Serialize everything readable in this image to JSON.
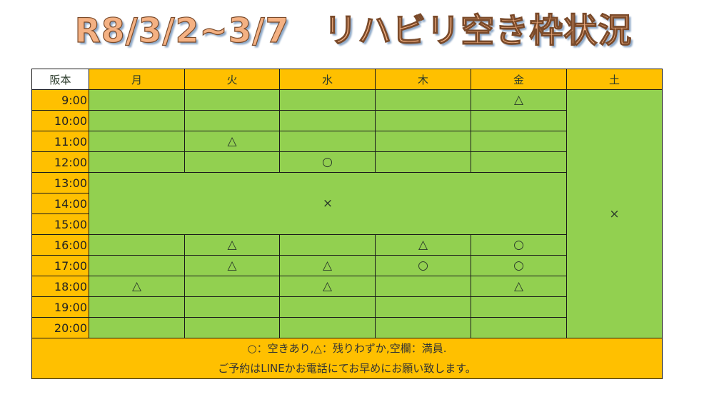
{
  "title": "R8/3/2~3/7　リハビリ空き枠状況",
  "header": {
    "location": "阪本",
    "days": [
      "月",
      "火",
      "水",
      "木",
      "金",
      "土"
    ]
  },
  "colors": {
    "header": "#ffc000",
    "cell": "#92d050",
    "title_fill": "#f4b183"
  },
  "rows": [
    {
      "time": "9:00",
      "cells": [
        "",
        "",
        "",
        "",
        "△"
      ]
    },
    {
      "time": "10:00",
      "cells": [
        "",
        "",
        "",
        "",
        ""
      ]
    },
    {
      "time": "11:00",
      "cells": [
        "",
        "△",
        "",
        "",
        ""
      ]
    },
    {
      "time": "12:00",
      "cells": [
        "",
        "",
        "○",
        "",
        ""
      ]
    },
    {
      "time": "13:00",
      "cells": null
    },
    {
      "time": "14:00",
      "cells": null
    },
    {
      "time": "15:00",
      "cells": null
    },
    {
      "time": "16:00",
      "cells": [
        "",
        "△",
        "",
        "△",
        "○"
      ]
    },
    {
      "time": "17:00",
      "cells": [
        "",
        "△",
        "△",
        "○",
        "○"
      ]
    },
    {
      "time": "18:00",
      "cells": [
        "△",
        "",
        "△",
        "",
        "△"
      ]
    },
    {
      "time": "19:00",
      "cells": [
        "",
        "",
        "",
        "",
        ""
      ]
    },
    {
      "time": "20:00",
      "cells": [
        "",
        "",
        "",
        "",
        ""
      ]
    }
  ],
  "afternoon_closed": "×",
  "saturday": "×",
  "footer": {
    "legend": "○：空きあり,△：残りわずか,空欄：満員.",
    "note": "ご予約はLINEかお電話にてお早めにお願い致します。"
  }
}
